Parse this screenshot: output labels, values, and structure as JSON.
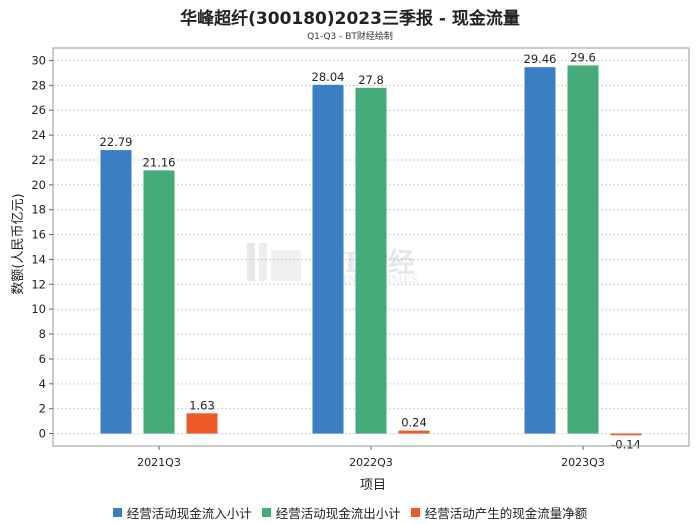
{
  "chart_data": {
    "type": "bar",
    "title": "华峰超纤(300180)2023三季报 - 现金流量",
    "subtitle": "Q1-Q3 - BT财经绘制",
    "xlabel": "项目",
    "ylabel": "数额(人民币亿元)",
    "ylim": [
      -1,
      31
    ],
    "yticks": [
      0,
      2,
      4,
      6,
      8,
      10,
      12,
      14,
      16,
      18,
      20,
      22,
      24,
      26,
      28,
      30
    ],
    "grid": true,
    "legend_position": "bottom",
    "categories": [
      "2021Q3",
      "2022Q3",
      "2023Q3"
    ],
    "series": [
      {
        "name": "经营活动现金流入小计",
        "color": "#3a7fc1",
        "values": [
          22.79,
          28.04,
          29.46
        ],
        "labels": [
          "22.79",
          "28.04",
          "29.46"
        ]
      },
      {
        "name": "经营活动现金流出小计",
        "color": "#45ab78",
        "values": [
          21.16,
          27.8,
          29.6
        ],
        "labels": [
          "21.16",
          "27.8",
          "29.6"
        ]
      },
      {
        "name": "经营活动产生的现金流量净额",
        "color": "#ee5a2a",
        "values": [
          1.63,
          0.24,
          -0.14
        ],
        "labels": [
          "1.63",
          "0.24",
          "-0.14"
        ]
      }
    ]
  },
  "watermark": {
    "brand": "BT财经",
    "sub": "BUSINESSTIMES"
  }
}
